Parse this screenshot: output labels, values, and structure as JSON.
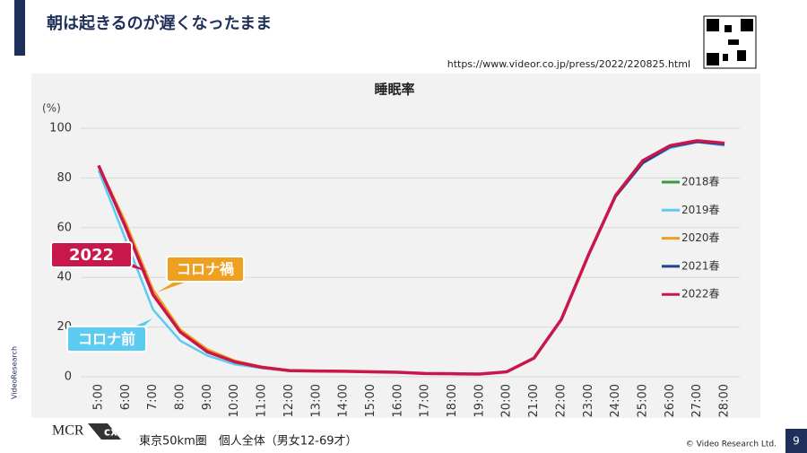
{
  "header": {
    "title": "朝は起きるのが遅くなったまま",
    "url": "https://www.videor.co.jp/press/2022/220825.html"
  },
  "chart_data": {
    "type": "line",
    "title": "睡眠率",
    "y_label": "(%)",
    "categories": [
      "5:00",
      "6:00",
      "7:00",
      "8:00",
      "9:00",
      "10:00",
      "11:00",
      "12:00",
      "13:00",
      "14:00",
      "15:00",
      "16:00",
      "17:00",
      "18:00",
      "19:00",
      "20:00",
      "21:00",
      "22:00",
      "23:00",
      "24:00",
      "25:00",
      "26:00",
      "27:00",
      "28:00"
    ],
    "ylim": [
      0,
      100
    ],
    "yticks": [
      0,
      20,
      40,
      60,
      80,
      100
    ],
    "series": [
      {
        "name": "2018春",
        "color": "#3a9a3a",
        "values": [
          85,
          60,
          33,
          18,
          10,
          6,
          3.8,
          2.5,
          2.3,
          2.2,
          2.0,
          1.8,
          1.3,
          1.2,
          1.1,
          2,
          7.5,
          23,
          49,
          73,
          86.5,
          92.5,
          94.5,
          93.5
        ]
      },
      {
        "name": "2019春",
        "color": "#5ccbf2",
        "values": [
          83,
          55,
          27,
          14.5,
          8.5,
          5,
          3.5,
          2.5,
          2.3,
          2.2,
          2.0,
          1.8,
          1.3,
          1.2,
          1.1,
          2,
          7.5,
          23,
          49,
          72.5,
          86,
          92,
          94.5,
          93
        ]
      },
      {
        "name": "2020春",
        "color": "#f0a020",
        "values": [
          85,
          62,
          35,
          19,
          11,
          6.5,
          4,
          2.6,
          2.4,
          2.3,
          2.1,
          1.9,
          1.4,
          1.2,
          1.1,
          2,
          7.5,
          23,
          49,
          73,
          87,
          93,
          95,
          94
        ]
      },
      {
        "name": "2021春",
        "color": "#1f3f8f",
        "values": [
          85,
          60,
          33,
          18,
          10,
          6,
          3.8,
          2.5,
          2.3,
          2.2,
          2.0,
          1.8,
          1.3,
          1.2,
          1.1,
          2,
          7.5,
          23,
          49,
          72.5,
          86,
          92.5,
          94.5,
          93.5
        ]
      },
      {
        "name": "2022春",
        "color": "#c8174a",
        "values": [
          85,
          60,
          33,
          18,
          10,
          6,
          3.8,
          2.5,
          2.3,
          2.2,
          2.0,
          1.8,
          1.3,
          1.2,
          1.1,
          2,
          7.5,
          23,
          49,
          73,
          87,
          93,
          95,
          94
        ]
      }
    ],
    "annotations": [
      "2022",
      "コロナ禍",
      "コロナ前"
    ]
  },
  "footer": {
    "logo": "MCR",
    "logo_sub": "cx",
    "note": "東京50km圏　個人全体（男女12-69才）",
    "copyright": "© Video Research Ltd.",
    "page": "9",
    "side": "VideoResearch"
  }
}
